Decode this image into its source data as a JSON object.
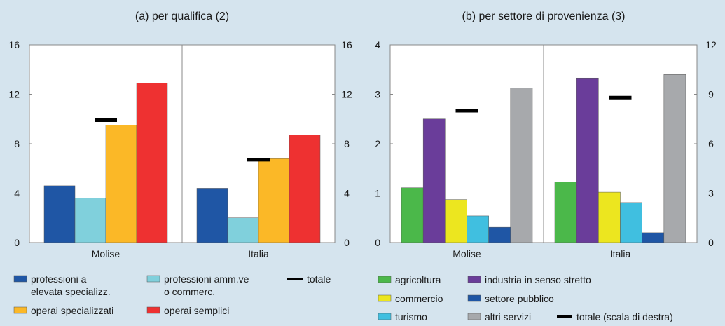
{
  "chart_data": [
    {
      "type": "bar",
      "title": "(a) per qualifica (2)",
      "categories": [
        "Molise",
        "Italia"
      ],
      "series": [
        {
          "name": "professioni a\nelevata specializz.",
          "color": "#1f56a5",
          "values": [
            4.6,
            4.4
          ]
        },
        {
          "name": "professioni amm.ve\no commerc.",
          "color": "#80d0dc",
          "values": [
            3.6,
            2.0
          ]
        },
        {
          "name": "operai specializzati",
          "color": "#fbb827",
          "values": [
            9.5,
            6.8
          ]
        },
        {
          "name": "operai semplici",
          "color": "#ee3131",
          "values": [
            12.9,
            8.7
          ]
        },
        {
          "name": "totale",
          "color": "#000000",
          "mark": "dash",
          "values": [
            9.9,
            6.7
          ]
        }
      ],
      "ylim": [
        0,
        16
      ],
      "yticks": [
        0,
        4,
        8,
        12,
        16
      ],
      "y2lim": [
        0,
        16
      ],
      "y2ticks": [
        0,
        4,
        8,
        12,
        16
      ]
    },
    {
      "type": "bar",
      "title": "(b) per settore di provenienza (3)",
      "categories": [
        "Molise",
        "Italia"
      ],
      "series": [
        {
          "name": "agricoltura",
          "color": "#4bb84a",
          "values": [
            1.11,
            1.23
          ]
        },
        {
          "name": "industria in senso stretto",
          "color": "#6a3d9a",
          "values": [
            2.5,
            3.33
          ]
        },
        {
          "name": "commercio",
          "color": "#ece61f",
          "values": [
            0.87,
            1.02
          ]
        },
        {
          "name": "turismo",
          "color": "#40bfe0",
          "values": [
            0.54,
            0.81
          ]
        },
        {
          "name": "settore pubblico",
          "color": "#1f56a5",
          "values": [
            0.31,
            0.2
          ]
        },
        {
          "name": "altri servizi",
          "color": "#a7a9ac",
          "values": [
            3.13,
            3.4
          ]
        },
        {
          "name": "totale (scala di destra)",
          "color": "#000000",
          "mark": "dash",
          "axis": "y2",
          "values": [
            8.0,
            8.8
          ]
        }
      ],
      "ylim": [
        0,
        4
      ],
      "yticks": [
        0,
        1,
        2,
        3,
        4
      ],
      "y2lim": [
        0,
        12
      ],
      "y2ticks": [
        0,
        3,
        6,
        9,
        12
      ]
    }
  ]
}
